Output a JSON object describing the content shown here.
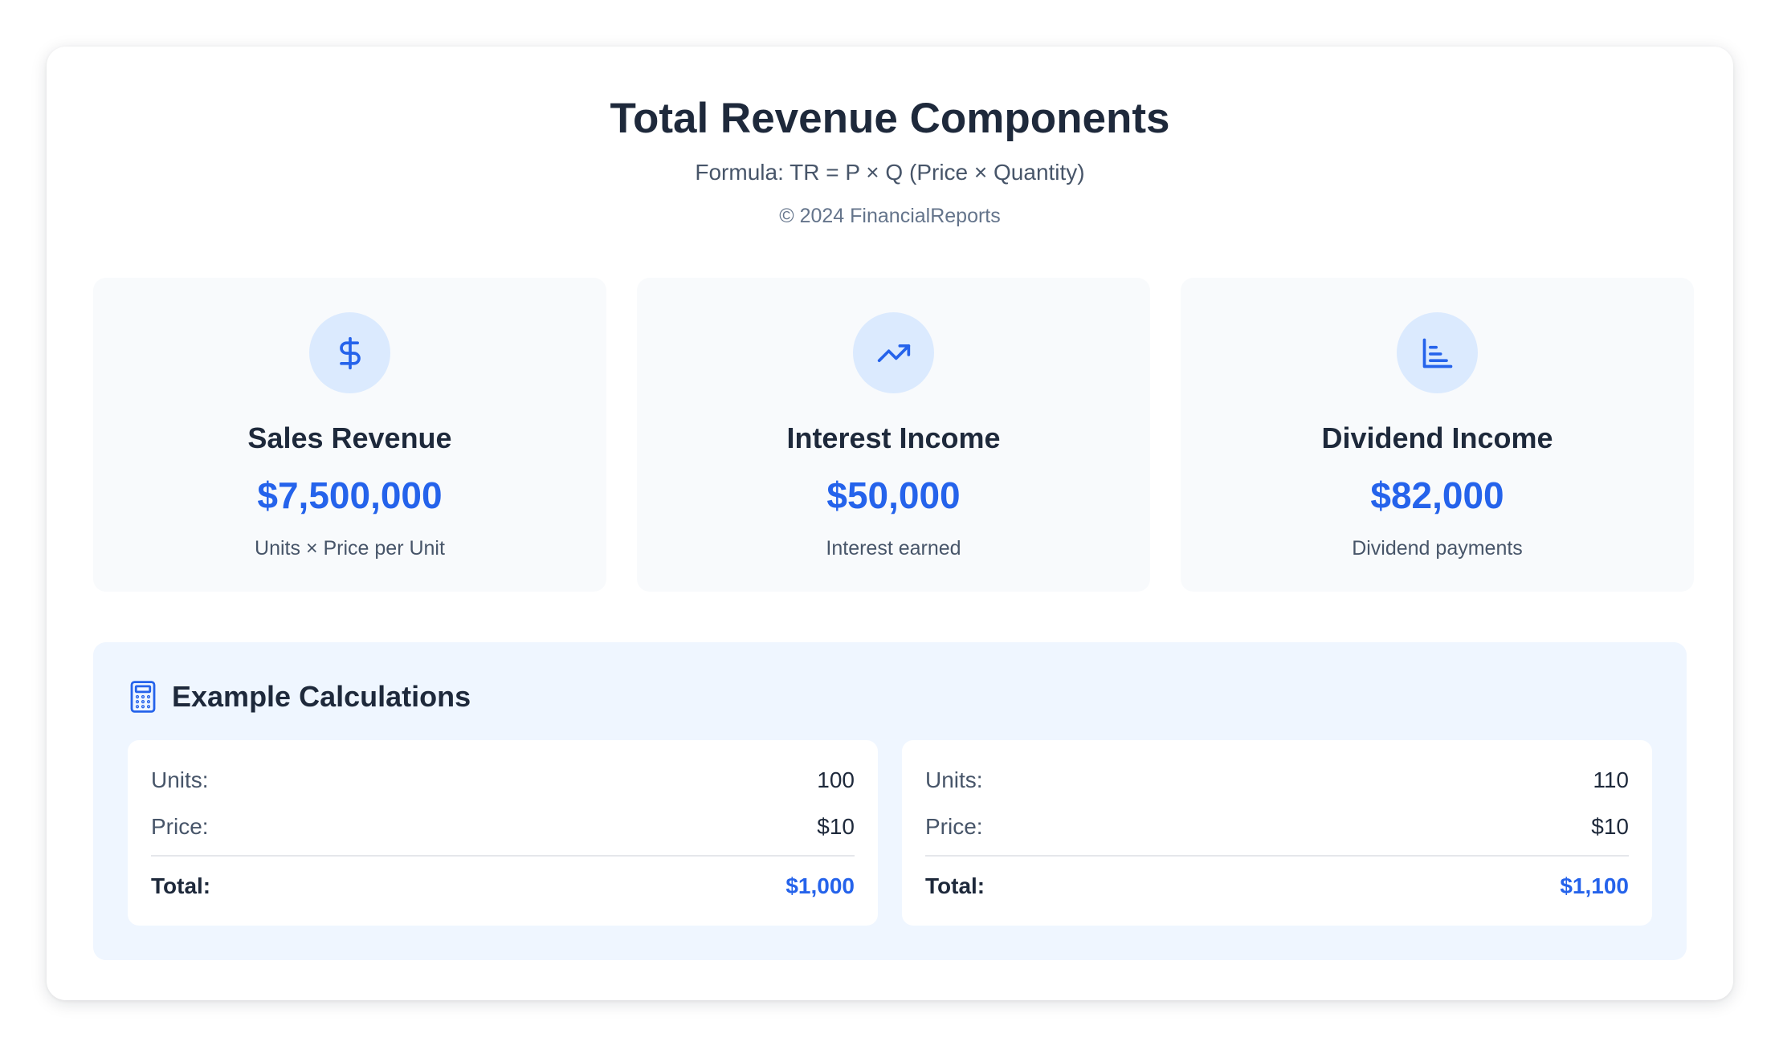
{
  "header": {
    "title": "Total Revenue Components",
    "formula": "Formula: TR = P × Q (Price × Quantity)",
    "copyright": "© 2024 FinancialReports"
  },
  "metrics": [
    {
      "icon": "dollar-icon",
      "label": "Sales Revenue",
      "value": "$7,500,000",
      "description": "Units × Price per Unit"
    },
    {
      "icon": "trending-up-icon",
      "label": "Interest Income",
      "value": "$50,000",
      "description": "Interest earned"
    },
    {
      "icon": "bar-chart-icon",
      "label": "Dividend Income",
      "value": "$82,000",
      "description": "Dividend payments"
    }
  ],
  "examples": {
    "icon": "calculator-icon",
    "title": "Example Calculations",
    "calculations": [
      {
        "units_label": "Units:",
        "units_value": "100",
        "price_label": "Price:",
        "price_value": "$10",
        "total_label": "Total:",
        "total_value": "$1,000"
      },
      {
        "units_label": "Units:",
        "units_value": "110",
        "price_label": "Price:",
        "price_value": "$10",
        "total_label": "Total:",
        "total_value": "$1,100"
      }
    ]
  },
  "colors": {
    "accent": "#2563eb",
    "icon_bg": "#dbeafe",
    "card_bg": "#f8fafc",
    "examples_bg": "#eff6ff",
    "heading": "#1e293b"
  }
}
